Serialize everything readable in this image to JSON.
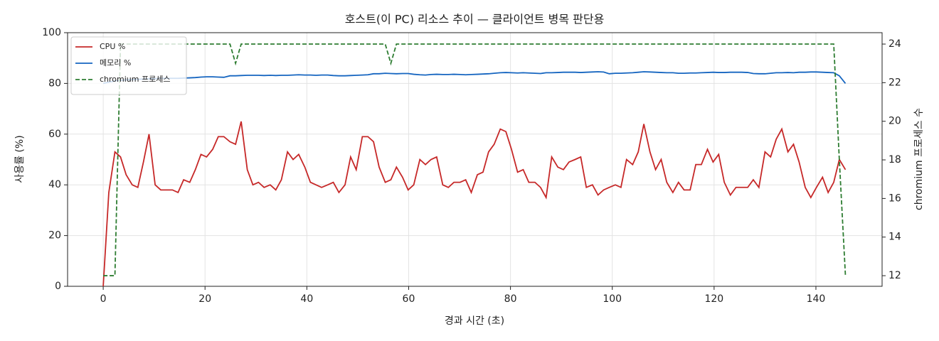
{
  "chart_data": {
    "type": "line",
    "title": "호스트(이 PC) 리소스 추이 — 클라이언트 병목 판단용",
    "xlabel": "경과 시간 (초)",
    "ylabel": "사용률 (%)",
    "y2label": "chromium 프로세스 수",
    "x": [
      0,
      1.1,
      2.3,
      3.4,
      4.5,
      5.7,
      6.8,
      7.9,
      9.0,
      10.2,
      11.3,
      12.4,
      13.6,
      14.7,
      15.8,
      17.0,
      18.1,
      19.2,
      20.3,
      21.5,
      22.6,
      23.7,
      24.9,
      26.0,
      27.1,
      28.3,
      29.4,
      30.5,
      31.6,
      32.8,
      33.9,
      35.0,
      36.2,
      37.3,
      38.4,
      39.6,
      40.7,
      41.8,
      42.9,
      44.1,
      45.2,
      46.3,
      47.5,
      48.6,
      49.7,
      50.9,
      52.0,
      53.1,
      54.2,
      55.4,
      56.5,
      57.6,
      58.8,
      59.9,
      61.0,
      62.2,
      63.3,
      64.4,
      65.5,
      66.7,
      67.8,
      68.9,
      70.1,
      71.2,
      72.3,
      73.5,
      74.6,
      75.7,
      76.8,
      78.0,
      79.1,
      80.2,
      81.4,
      82.5,
      83.6,
      84.8,
      85.9,
      87.0,
      88.1,
      89.3,
      90.4,
      91.5,
      92.7,
      93.8,
      94.9,
      96.1,
      97.2,
      98.3,
      99.4,
      100.6,
      101.7,
      102.8,
      104.0,
      105.1,
      106.2,
      107.4,
      108.5,
      109.6,
      110.7,
      111.9,
      113.0,
      114.1,
      115.3,
      116.4,
      117.5,
      118.7,
      119.8,
      120.9,
      122.0,
      123.2,
      124.3,
      125.4,
      126.6,
      127.7,
      128.8,
      130.0,
      131.1,
      132.2,
      133.3,
      134.5,
      135.6,
      136.7,
      137.9,
      139.0,
      140.1,
      141.3,
      142.4,
      143.5,
      144.6,
      145.8
    ],
    "series": [
      {
        "name": "CPU %",
        "color": "#c62828",
        "linestyle": "solid",
        "values": [
          0,
          37,
          53,
          51,
          44,
          40,
          39,
          49,
          60,
          40,
          38,
          38,
          38,
          37,
          42,
          41,
          46,
          52,
          51,
          54,
          59,
          59,
          57,
          56,
          65,
          46,
          40,
          41,
          39,
          40,
          38,
          42,
          53,
          50,
          52,
          47,
          41,
          40,
          39,
          40,
          41,
          37,
          40,
          51,
          46,
          59,
          59,
          57,
          47,
          41,
          42,
          47,
          43,
          38,
          40,
          50,
          48,
          50,
          51,
          40,
          39,
          41,
          41,
          42,
          37,
          44,
          45,
          53,
          56,
          62,
          61,
          54,
          45,
          46,
          41,
          41,
          39,
          35,
          51,
          47,
          46,
          49,
          50,
          51,
          39,
          40,
          36,
          38,
          39,
          40,
          39,
          50,
          48,
          53,
          64,
          53,
          46,
          50,
          41,
          37,
          41,
          38,
          38,
          48,
          48,
          54,
          49,
          52,
          41,
          36,
          39,
          39,
          39,
          42,
          39,
          53,
          51,
          58,
          62,
          53,
          56,
          49,
          39,
          35,
          39,
          43,
          37,
          41,
          50,
          46
        ]
      },
      {
        "name": "메모리 %",
        "color": "#1565c0",
        "linestyle": "solid",
        "values": [
          80,
          80.5,
          81,
          81.2,
          81.4,
          81.5,
          81.6,
          81.7,
          81.8,
          81.9,
          82,
          82,
          82,
          82,
          82.1,
          82.2,
          82.3,
          82.5,
          82.6,
          82.6,
          82.5,
          82.4,
          83,
          83,
          83.1,
          83.2,
          83.2,
          83.2,
          83.1,
          83.2,
          83.1,
          83.2,
          83.2,
          83.3,
          83.4,
          83.3,
          83.3,
          83.2,
          83.3,
          83.3,
          83.1,
          83.0,
          83.0,
          83.1,
          83.2,
          83.3,
          83.4,
          83.8,
          83.8,
          84,
          83.9,
          83.8,
          83.9,
          83.9,
          83.6,
          83.4,
          83.3,
          83.5,
          83.6,
          83.5,
          83.5,
          83.6,
          83.5,
          83.4,
          83.5,
          83.6,
          83.7,
          83.8,
          84.0,
          84.2,
          84.3,
          84.2,
          84.1,
          84.2,
          84.1,
          84.0,
          83.9,
          84.2,
          84.2,
          84.3,
          84.4,
          84.4,
          84.4,
          84.3,
          84.4,
          84.5,
          84.6,
          84.5,
          83.8,
          84.0,
          84.0,
          84.1,
          84.2,
          84.4,
          84.6,
          84.5,
          84.4,
          84.3,
          84.2,
          84.2,
          84.0,
          84.0,
          84.1,
          84.1,
          84.2,
          84.3,
          84.4,
          84.3,
          84.3,
          84.4,
          84.4,
          84.4,
          84.3,
          83.9,
          83.8,
          83.8,
          84.0,
          84.2,
          84.2,
          84.3,
          84.2,
          84.4,
          84.4,
          84.5,
          84.5,
          84.4,
          84.3,
          84.2,
          83.0,
          80
        ]
      },
      {
        "name": "chromium 프로세스",
        "color": "#2e7d32",
        "linestyle": "dashed",
        "axis": "y2",
        "values": [
          12,
          12,
          12,
          24,
          24,
          24,
          24,
          24,
          24,
          24,
          24,
          24,
          24,
          24,
          24,
          24,
          24,
          24,
          24,
          24,
          24,
          24,
          24,
          23,
          24,
          24,
          24,
          24,
          24,
          24,
          24,
          24,
          24,
          24,
          24,
          24,
          24,
          24,
          24,
          24,
          24,
          24,
          24,
          24,
          24,
          24,
          24,
          24,
          24,
          24,
          23,
          24,
          24,
          24,
          24,
          24,
          24,
          24,
          24,
          24,
          24,
          24,
          24,
          24,
          24,
          24,
          24,
          24,
          24,
          24,
          24,
          24,
          24,
          24,
          24,
          24,
          24,
          24,
          24,
          24,
          24,
          24,
          24,
          24,
          24,
          24,
          24,
          24,
          24,
          24,
          24,
          24,
          24,
          24,
          24,
          24,
          24,
          24,
          24,
          24,
          24,
          24,
          24,
          24,
          24,
          24,
          24,
          24,
          24,
          24,
          24,
          24,
          24,
          24,
          24,
          24,
          24,
          24,
          24,
          24,
          24,
          24,
          24,
          24,
          24,
          24,
          24,
          24,
          18,
          12
        ]
      }
    ],
    "xlim": [
      -7,
      153
    ],
    "xticks": [
      0,
      20,
      40,
      60,
      80,
      100,
      120,
      140
    ],
    "ylim": [
      0,
      100
    ],
    "yticks": [
      0,
      20,
      40,
      60,
      80,
      100
    ],
    "y2lim": [
      11.45,
      24.59
    ],
    "y2ticks": [
      12,
      14,
      16,
      18,
      20,
      22,
      24
    ],
    "grid": true,
    "legend": "upper left"
  }
}
